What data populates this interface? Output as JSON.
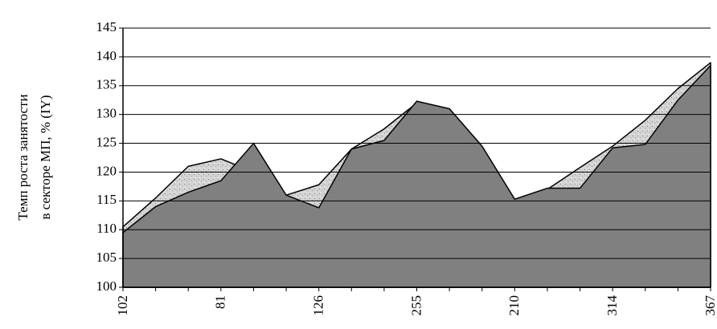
{
  "chart_data": {
    "type": "area",
    "ylabel": [
      "Темп роста занятости",
      "в секторе МП, % (IY)"
    ],
    "categories": [
      "102",
      null,
      null,
      "81",
      null,
      null,
      "126",
      null,
      null,
      "255",
      null,
      null,
      "210",
      null,
      null,
      "314",
      null,
      null,
      "367"
    ],
    "series": [
      {
        "color": "#c8c8c8",
        "values": [
          110.5,
          115.5,
          121,
          122.3,
          120,
          116,
          117.8,
          124,
          127.5,
          132,
          130.5,
          124,
          115,
          117,
          120.8,
          124.5,
          129,
          134.5,
          139
        ]
      },
      {
        "color": "#808080",
        "values": [
          109.5,
          114,
          116.5,
          118.5,
          125,
          116,
          113.8,
          124,
          125.5,
          132.3,
          131,
          124.5,
          115.3,
          117.2,
          117.2,
          124.2,
          124.8,
          132.5,
          138.5
        ]
      }
    ],
    "ylim": [
      100,
      145
    ],
    "yticks": [
      100,
      105,
      110,
      115,
      120,
      125,
      130,
      135,
      140,
      145
    ],
    "grid": true
  }
}
